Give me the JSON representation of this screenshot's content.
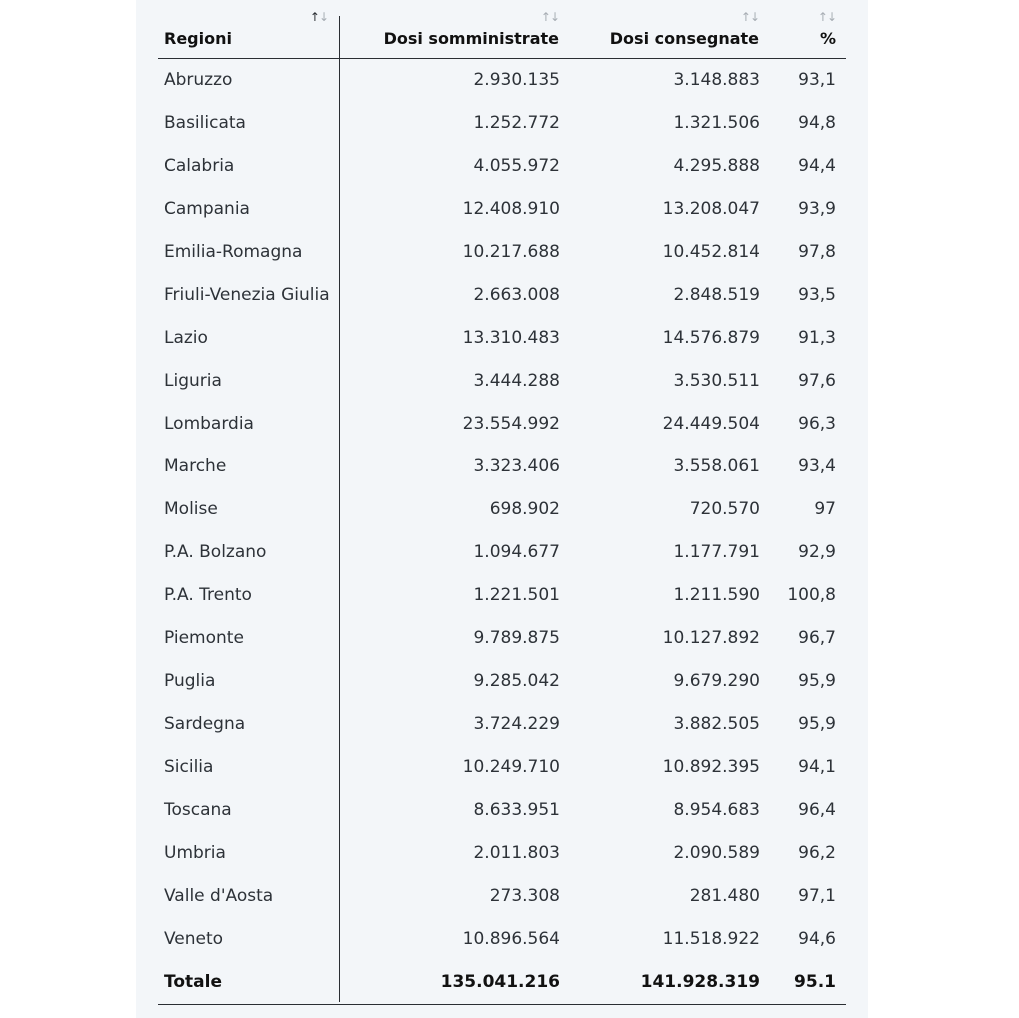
{
  "table": {
    "headers": {
      "region": "Regioni",
      "administered": "Dosi somministrate",
      "delivered": "Dosi consegnate",
      "percent": "%"
    },
    "sort_icons": {
      "up": "↑",
      "down": "↓"
    },
    "rows": [
      {
        "region": "Abruzzo",
        "administered": "2.930.135",
        "delivered": "3.148.883",
        "percent": "93,1"
      },
      {
        "region": "Basilicata",
        "administered": "1.252.772",
        "delivered": "1.321.506",
        "percent": "94,8"
      },
      {
        "region": "Calabria",
        "administered": "4.055.972",
        "delivered": "4.295.888",
        "percent": "94,4"
      },
      {
        "region": "Campania",
        "administered": "12.408.910",
        "delivered": "13.208.047",
        "percent": "93,9"
      },
      {
        "region": "Emilia-Romagna",
        "administered": "10.217.688",
        "delivered": "10.452.814",
        "percent": "97,8"
      },
      {
        "region": "Friuli-Venezia Giulia",
        "administered": "2.663.008",
        "delivered": "2.848.519",
        "percent": "93,5"
      },
      {
        "region": "Lazio",
        "administered": "13.310.483",
        "delivered": "14.576.879",
        "percent": "91,3"
      },
      {
        "region": "Liguria",
        "administered": "3.444.288",
        "delivered": "3.530.511",
        "percent": "97,6"
      },
      {
        "region": "Lombardia",
        "administered": "23.554.992",
        "delivered": "24.449.504",
        "percent": "96,3"
      },
      {
        "region": "Marche",
        "administered": "3.323.406",
        "delivered": "3.558.061",
        "percent": "93,4"
      },
      {
        "region": "Molise",
        "administered": "698.902",
        "delivered": "720.570",
        "percent": "97"
      },
      {
        "region": "P.A. Bolzano",
        "administered": "1.094.677",
        "delivered": "1.177.791",
        "percent": "92,9"
      },
      {
        "region": "P.A. Trento",
        "administered": "1.221.501",
        "delivered": "1.211.590",
        "percent": "100,8"
      },
      {
        "region": "Piemonte",
        "administered": "9.789.875",
        "delivered": "10.127.892",
        "percent": "96,7"
      },
      {
        "region": "Puglia",
        "administered": "9.285.042",
        "delivered": "9.679.290",
        "percent": "95,9"
      },
      {
        "region": "Sardegna",
        "administered": "3.724.229",
        "delivered": "3.882.505",
        "percent": "95,9"
      },
      {
        "region": "Sicilia",
        "administered": "10.249.710",
        "delivered": "10.892.395",
        "percent": "94,1"
      },
      {
        "region": "Toscana",
        "administered": "8.633.951",
        "delivered": "8.954.683",
        "percent": "96,4"
      },
      {
        "region": "Umbria",
        "administered": "2.011.803",
        "delivered": "2.090.589",
        "percent": "96,2"
      },
      {
        "region": "Valle d'Aosta",
        "administered": "273.308",
        "delivered": "281.480",
        "percent": "97,1"
      },
      {
        "region": "Veneto",
        "administered": "10.896.564",
        "delivered": "11.518.922",
        "percent": "94,6"
      }
    ],
    "total": {
      "region": "Totale",
      "administered": "135.041.216",
      "delivered": "141.928.319",
      "percent": "95.1"
    }
  }
}
